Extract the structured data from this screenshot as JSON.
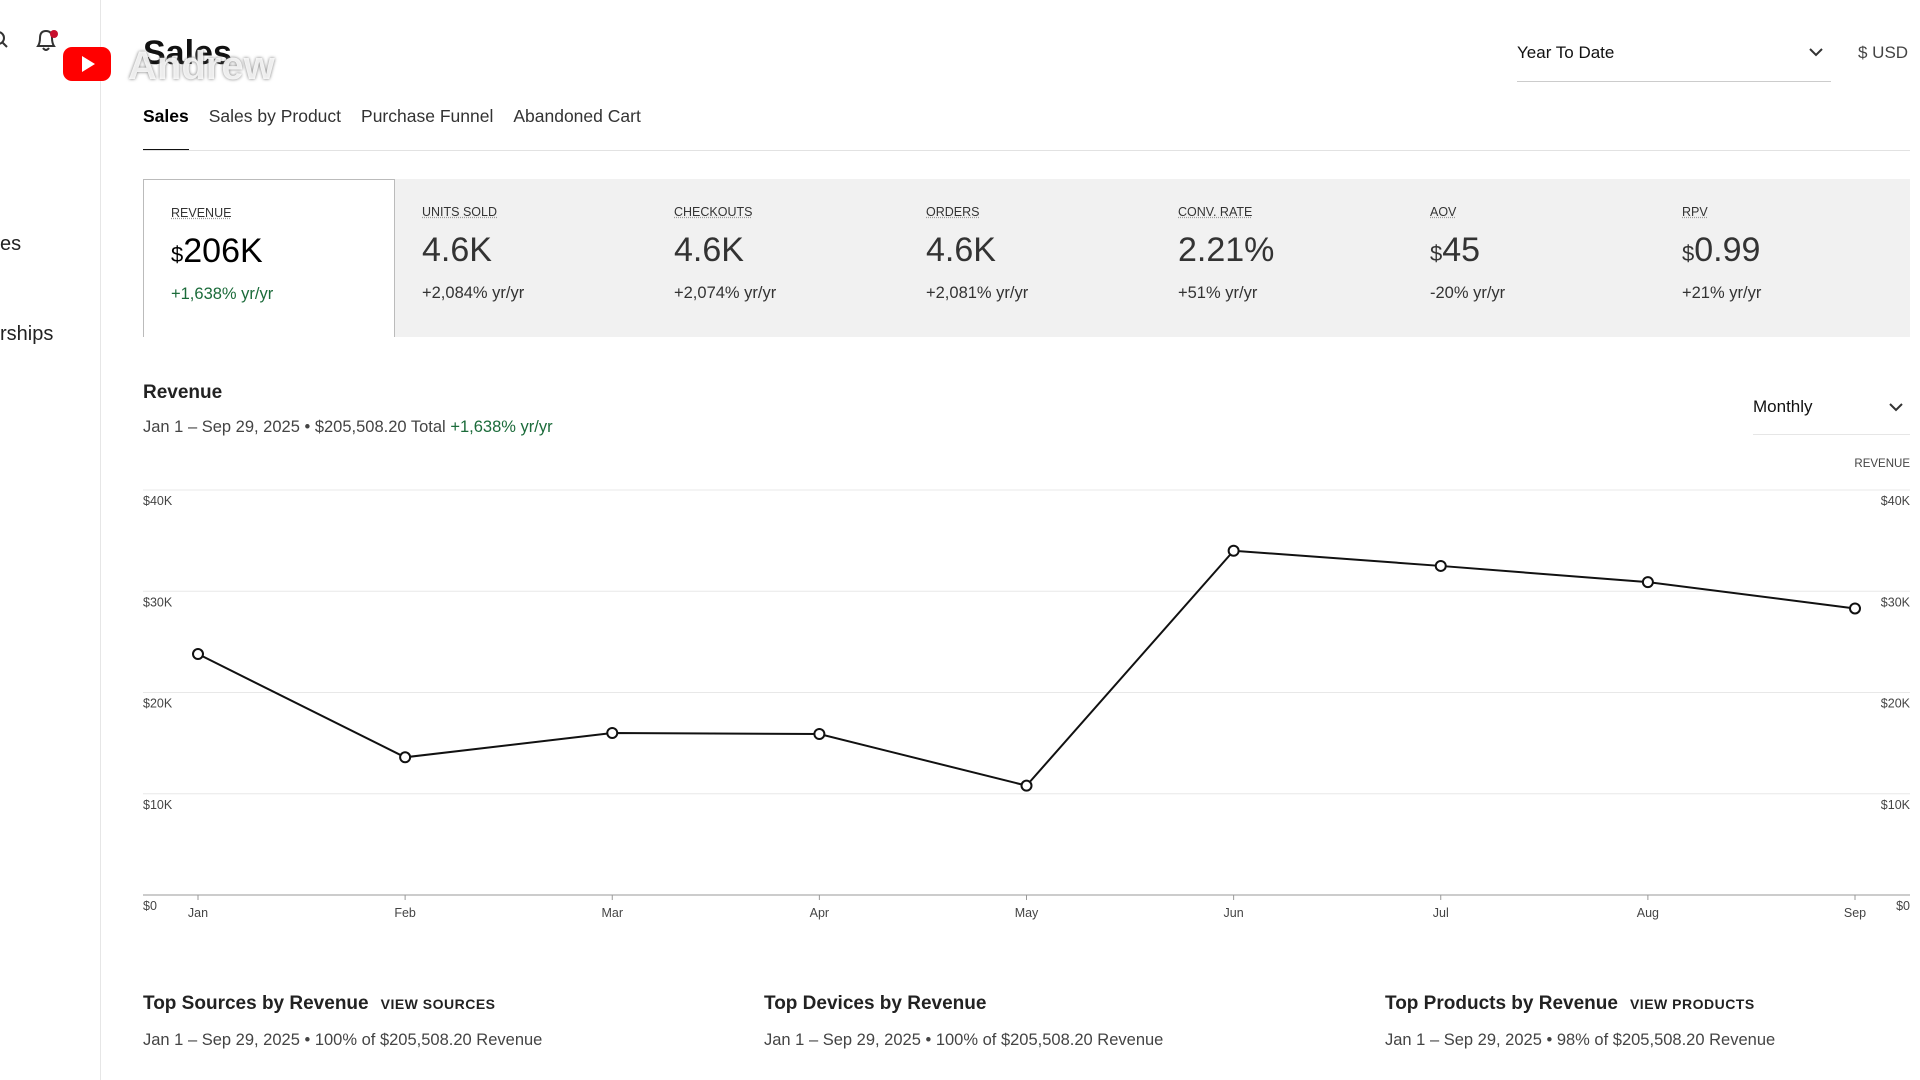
{
  "sidebar": {
    "items": [
      "es",
      "rships"
    ]
  },
  "overlay": {
    "channel": "Andrew"
  },
  "header": {
    "title": "Sales",
    "period": "Year To Date",
    "currency": "$ USD"
  },
  "tabs": [
    "Sales",
    "Sales by Product",
    "Purchase Funnel",
    "Abandoned Cart"
  ],
  "kpis": [
    {
      "label": "REVENUE",
      "currency": "$",
      "value": "206K",
      "change": "+1,638% yr/yr"
    },
    {
      "label": "UNITS SOLD",
      "value": "4.6K",
      "change": "+2,084% yr/yr"
    },
    {
      "label": "CHECKOUTS",
      "value": "4.6K",
      "change": "+2,074% yr/yr"
    },
    {
      "label": "ORDERS",
      "value": "4.6K",
      "change": "+2,081% yr/yr"
    },
    {
      "label": "CONV. RATE",
      "value": "2.21%",
      "change": "+51% yr/yr"
    },
    {
      "label": "AOV",
      "currency": "$",
      "value": "45",
      "change": "-20% yr/yr"
    },
    {
      "label": "RPV",
      "currency": "$",
      "value": "0.99",
      "change": "+21% yr/yr"
    }
  ],
  "chart_data": {
    "type": "line",
    "title": "Revenue",
    "subtitle": "Jan 1 – Sep 29, 2025 • $205,508.20 Total",
    "subtitle_change": "+1,638% yr/yr",
    "interval": "Monthly",
    "y2_label": "REVENUE",
    "categories": [
      "Jan",
      "Feb",
      "Mar",
      "Apr",
      "May",
      "Jun",
      "Jul",
      "Aug",
      "Sep"
    ],
    "series": [
      {
        "name": "Revenue",
        "color": "#111111",
        "values": [
          23800,
          13600,
          16000,
          15900,
          10800,
          34000,
          32500,
          30900,
          28300
        ]
      }
    ],
    "ylim": [
      0,
      40000
    ],
    "yticks": [
      {
        "value": 0,
        "label": "$0"
      },
      {
        "value": 10000,
        "label": "$10K"
      },
      {
        "value": 20000,
        "label": "$20K"
      },
      {
        "value": 30000,
        "label": "$30K"
      },
      {
        "value": 40000,
        "label": "$40K"
      }
    ],
    "y2lim": [
      0,
      40000
    ],
    "y2ticks": [
      {
        "value": 0,
        "label": "$0"
      },
      {
        "value": 10000,
        "label": "$10K"
      },
      {
        "value": 20000,
        "label": "$20K"
      },
      {
        "value": 30000,
        "label": "$30K"
      },
      {
        "value": 40000,
        "label": "$40K"
      }
    ],
    "grid": true
  },
  "panels": [
    {
      "title": "Top Sources by Revenue",
      "link": "VIEW SOURCES",
      "subtitle": "Jan 1 – Sep 29, 2025 • 100% of $205,508.20 Revenue"
    },
    {
      "title": "Top Devices by Revenue",
      "subtitle": "Jan 1 – Sep 29, 2025 • 100% of $205,508.20 Revenue"
    },
    {
      "title": "Top Products by Revenue",
      "link": "VIEW PRODUCTS",
      "subtitle": "Jan 1 – Sep 29, 2025 • 98% of $205,508.20 Revenue"
    }
  ]
}
